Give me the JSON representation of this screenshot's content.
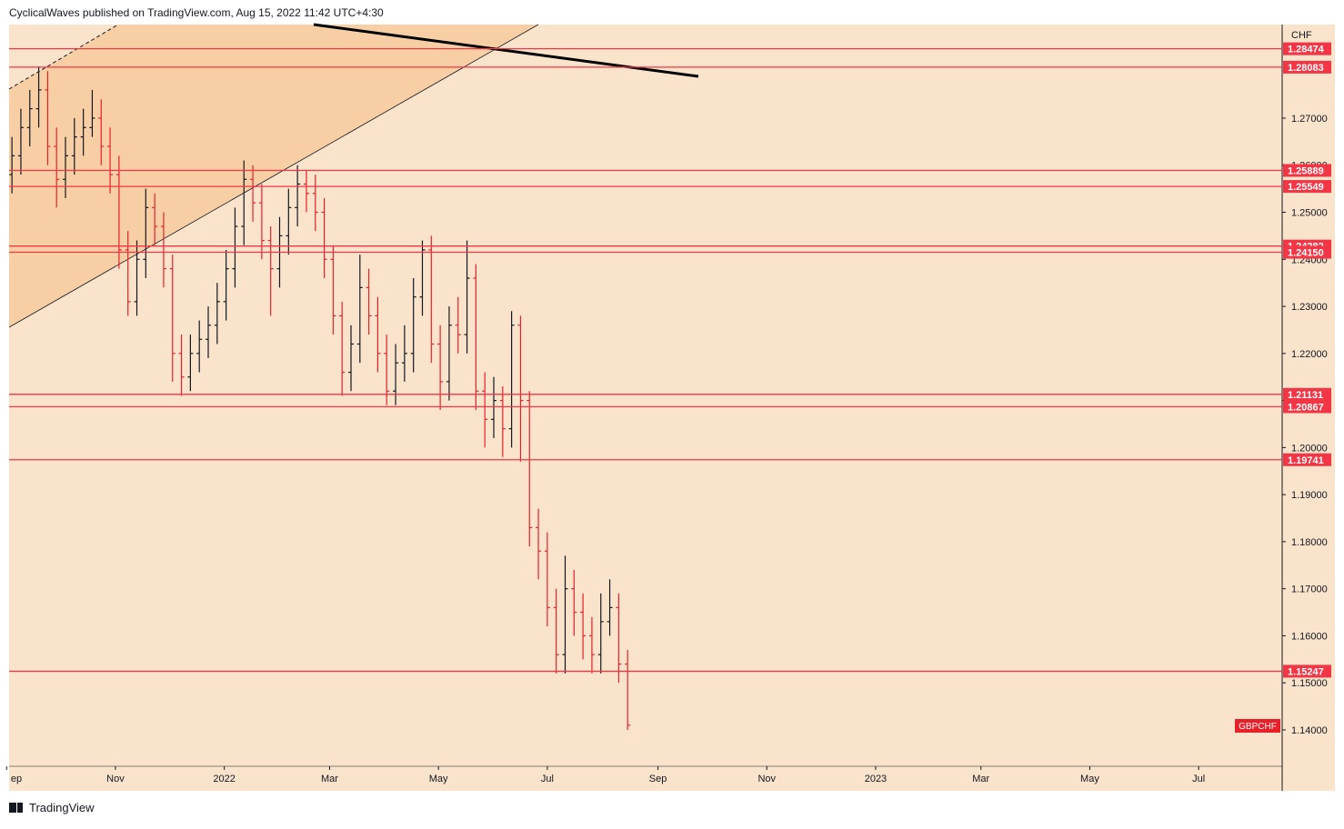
{
  "header": "CyclicalWaves published on TradingView.com, Aug 15, 2022 11:42 UTC+4:30",
  "footer": "TradingView",
  "chart_data": {
    "type": "ohlc",
    "symbol": "GBPCHF",
    "currency": "CHF",
    "up_color": "#131722",
    "down_color": "#e8202a",
    "level_color": "#f23645",
    "xlim": [
      -120.6,
      592.8
    ],
    "ylim": [
      1.13227,
      1.28989
    ],
    "xticks": [
      {
        "value": -122,
        "label": "ep"
      },
      {
        "value": -61,
        "label": "Nov"
      },
      {
        "value": 0,
        "label": "2022"
      },
      {
        "value": 59,
        "label": "Mar"
      },
      {
        "value": 120,
        "label": "May"
      },
      {
        "value": 181,
        "label": "Jul"
      },
      {
        "value": 243,
        "label": "Sep"
      },
      {
        "value": 304,
        "label": "Nov"
      },
      {
        "value": 365,
        "label": "2023"
      },
      {
        "value": 424,
        "label": "Mar"
      },
      {
        "value": 485,
        "label": "May"
      },
      {
        "value": 546,
        "label": "Jul"
      }
    ],
    "yticks": [
      {
        "value": 1.14,
        "label": "1.14000"
      },
      {
        "value": 1.15,
        "label": "1.15000"
      },
      {
        "value": 1.16,
        "label": "1.16000"
      },
      {
        "value": 1.17,
        "label": "1.17000"
      },
      {
        "value": 1.18,
        "label": "1.18000"
      },
      {
        "value": 1.19,
        "label": "1.19000"
      },
      {
        "value": 1.2,
        "label": "1.20000"
      },
      {
        "value": 1.21,
        "label": "1.21000"
      },
      {
        "value": 1.22,
        "label": "1.22000"
      },
      {
        "value": 1.23,
        "label": "1.23000"
      },
      {
        "value": 1.24,
        "label": "1.24000"
      },
      {
        "value": 1.25,
        "label": "1.25000"
      },
      {
        "value": 1.26,
        "label": "1.26000"
      },
      {
        "value": 1.27,
        "label": "1.27000"
      }
    ],
    "levels": [
      1.28474,
      1.28083,
      1.25889,
      1.25549,
      1.24282,
      {
        "value": 1.2415,
        "label": "1.24150"
      },
      1.21131,
      1.20867,
      1.19741,
      1.15247
    ],
    "x": [
      -119,
      -114,
      -109,
      -104,
      -99,
      -94,
      -89,
      -84,
      -79,
      -74,
      -69,
      -64,
      -59,
      -54,
      -49,
      -44,
      -39,
      -34,
      -29,
      -24,
      -19,
      -14,
      -9,
      -4,
      1,
      6,
      11,
      16,
      21,
      26,
      31,
      36,
      41,
      46,
      51,
      56,
      61,
      66,
      71,
      76,
      81,
      86,
      91,
      96,
      101,
      106,
      111,
      116,
      121,
      126,
      131,
      136,
      141,
      146,
      151,
      156,
      161,
      166,
      171,
      176,
      181,
      186,
      191,
      196,
      201,
      206,
      211,
      216,
      221,
      226
    ],
    "open": [
      1.258,
      1.262,
      1.268,
      1.272,
      1.276,
      1.264,
      1.257,
      1.262,
      1.266,
      1.268,
      1.27,
      1.264,
      1.258,
      1.242,
      1.231,
      1.24,
      1.251,
      1.247,
      1.238,
      1.22,
      1.215,
      1.22,
      1.223,
      1.226,
      1.231,
      1.238,
      1.247,
      1.257,
      1.252,
      1.244,
      1.238,
      1.245,
      1.251,
      1.256,
      1.254,
      1.25,
      1.24,
      1.228,
      1.216,
      1.222,
      1.234,
      1.228,
      1.22,
      1.212,
      1.218,
      1.22,
      1.232,
      1.242,
      1.222,
      1.214,
      1.226,
      1.224,
      1.236,
      1.212,
      1.206,
      1.21,
      1.204,
      1.226,
      1.21,
      1.183,
      1.178,
      1.166,
      1.156,
      1.17,
      1.165,
      1.16,
      1.156,
      1.163,
      1.166,
      1.154
    ],
    "high": [
      1.266,
      1.272,
      1.276,
      1.281,
      1.28,
      1.268,
      1.266,
      1.27,
      1.272,
      1.276,
      1.274,
      1.268,
      1.262,
      1.246,
      1.244,
      1.255,
      1.254,
      1.25,
      1.241,
      1.224,
      1.224,
      1.227,
      1.23,
      1.235,
      1.242,
      1.251,
      1.261,
      1.26,
      1.256,
      1.247,
      1.249,
      1.255,
      1.26,
      1.259,
      1.258,
      1.253,
      1.243,
      1.231,
      1.226,
      1.241,
      1.238,
      1.232,
      1.224,
      1.222,
      1.226,
      1.236,
      1.244,
      1.245,
      1.226,
      1.23,
      1.232,
      1.244,
      1.239,
      1.216,
      1.215,
      1.213,
      1.229,
      1.228,
      1.212,
      1.187,
      1.182,
      1.17,
      1.177,
      1.174,
      1.169,
      1.164,
      1.169,
      1.172,
      1.169,
      1.157
    ],
    "low": [
      1.254,
      1.258,
      1.264,
      1.268,
      1.26,
      1.251,
      1.253,
      1.258,
      1.262,
      1.266,
      1.26,
      1.254,
      1.238,
      1.228,
      1.228,
      1.236,
      1.243,
      1.234,
      1.214,
      1.211,
      1.212,
      1.216,
      1.219,
      1.222,
      1.227,
      1.234,
      1.243,
      1.248,
      1.24,
      1.228,
      1.234,
      1.241,
      1.247,
      1.25,
      1.246,
      1.236,
      1.224,
      1.211,
      1.212,
      1.218,
      1.224,
      1.216,
      1.209,
      1.209,
      1.214,
      1.216,
      1.228,
      1.218,
      1.208,
      1.21,
      1.22,
      1.22,
      1.208,
      1.2,
      1.202,
      1.198,
      1.2,
      1.197,
      1.179,
      1.172,
      1.162,
      1.152,
      1.152,
      1.16,
      1.155,
      1.152,
      1.152,
      1.16,
      1.15,
      1.14
    ],
    "close": [
      1.262,
      1.268,
      1.272,
      1.276,
      1.264,
      1.257,
      1.262,
      1.266,
      1.268,
      1.27,
      1.264,
      1.258,
      1.242,
      1.231,
      1.24,
      1.251,
      1.247,
      1.238,
      1.22,
      1.215,
      1.22,
      1.223,
      1.226,
      1.231,
      1.238,
      1.247,
      1.257,
      1.252,
      1.244,
      1.238,
      1.245,
      1.251,
      1.256,
      1.254,
      1.25,
      1.24,
      1.228,
      1.216,
      1.222,
      1.234,
      1.228,
      1.22,
      1.212,
      1.218,
      1.22,
      1.232,
      1.242,
      1.222,
      1.214,
      1.226,
      1.224,
      1.236,
      1.212,
      1.206,
      1.21,
      1.204,
      1.226,
      1.21,
      1.183,
      1.178,
      1.166,
      1.156,
      1.17,
      1.165,
      1.16,
      1.156,
      1.163,
      1.166,
      1.154,
      1.141
    ]
  }
}
